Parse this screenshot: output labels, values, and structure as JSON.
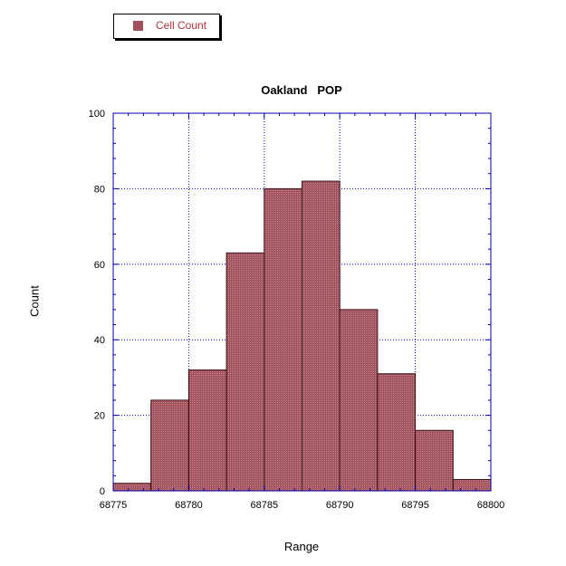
{
  "legend": {
    "label": "Cell Count"
  },
  "colors": {
    "bar_fill": "#a0505a",
    "bar_stroke": "#3a1015",
    "axis": "#0000aa",
    "grid": "#0000cc"
  },
  "chart_data": {
    "type": "bar",
    "title": "Oakland   POP",
    "xlabel": "Range",
    "ylabel": "Count",
    "xlim": [
      68775,
      68800
    ],
    "ylim": [
      0,
      100
    ],
    "x_ticks": [
      68775,
      68780,
      68785,
      68790,
      68795,
      68800
    ],
    "y_ticks": [
      0,
      20,
      40,
      60,
      80,
      100
    ],
    "bin_width": 2.5,
    "bins": [
      {
        "start": 68775,
        "end": 68777.5,
        "value": 2
      },
      {
        "start": 68777.5,
        "end": 68780,
        "value": 24
      },
      {
        "start": 68780,
        "end": 68782.5,
        "value": 32
      },
      {
        "start": 68782.5,
        "end": 68785,
        "value": 63
      },
      {
        "start": 68785,
        "end": 68787.5,
        "value": 80
      },
      {
        "start": 68787.5,
        "end": 68790,
        "value": 82
      },
      {
        "start": 68790,
        "end": 68792.5,
        "value": 48
      },
      {
        "start": 68792.5,
        "end": 68795,
        "value": 31
      },
      {
        "start": 68795,
        "end": 68797.5,
        "value": 16
      },
      {
        "start": 68797.5,
        "end": 68800,
        "value": 3
      }
    ],
    "series": [
      {
        "name": "Cell Count"
      }
    ],
    "grid": true,
    "legend_position": "top-left"
  }
}
